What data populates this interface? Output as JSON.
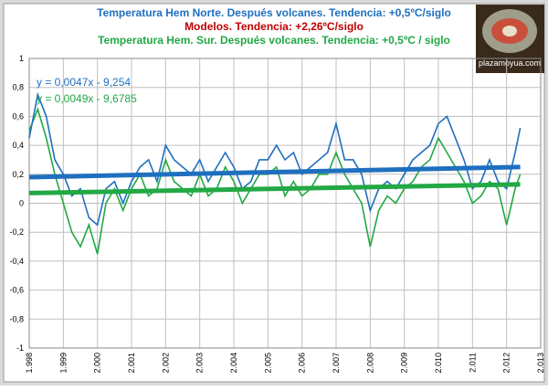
{
  "chart_data": {
    "type": "line",
    "title_lines": [
      {
        "text": "Temperatura Hem Norte. Después volcanes. Tendencia: +0,5ºC/siglo",
        "color": "#1f6fbf"
      },
      {
        "text": "Modelos. Tendencia: +2,26ºC/siglo",
        "color": "#c00000"
      },
      {
        "text": "Temperatura Hem. Sur. Después volcanes. Tendencia:  +0,5ºC / siglo",
        "color": "#22a844"
      }
    ],
    "logo": "plazamoyua.com",
    "x": [
      1998,
      1998.25,
      1998.5,
      1998.75,
      1999,
      1999.25,
      1999.5,
      1999.75,
      2000,
      2000.25,
      2000.5,
      2000.75,
      2001,
      2001.25,
      2001.5,
      2001.75,
      2002,
      2002.25,
      2002.5,
      2002.75,
      2003,
      2003.25,
      2003.5,
      2003.75,
      2004,
      2004.25,
      2004.5,
      2004.75,
      2005,
      2005.25,
      2005.5,
      2005.75,
      2006,
      2006.25,
      2006.5,
      2006.75,
      2007,
      2007.25,
      2007.5,
      2007.75,
      2008,
      2008.25,
      2008.5,
      2008.75,
      2009,
      2009.25,
      2009.5,
      2009.75,
      2010,
      2010.25,
      2010.5,
      2010.75,
      2011,
      2011.25,
      2011.5,
      2011.75,
      2012,
      2012.25,
      2012.4
    ],
    "series": [
      {
        "color": "#1f6fbf",
        "values": [
          0.45,
          0.75,
          0.6,
          0.3,
          0.2,
          0.05,
          0.1,
          -0.1,
          -0.15,
          0.1,
          0.15,
          0.0,
          0.15,
          0.25,
          0.3,
          0.15,
          0.4,
          0.3,
          0.25,
          0.2,
          0.3,
          0.15,
          0.25,
          0.35,
          0.25,
          0.1,
          0.15,
          0.3,
          0.3,
          0.4,
          0.3,
          0.35,
          0.2,
          0.25,
          0.3,
          0.35,
          0.55,
          0.3,
          0.3,
          0.2,
          -0.05,
          0.1,
          0.15,
          0.1,
          0.2,
          0.3,
          0.35,
          0.4,
          0.55,
          0.6,
          0.45,
          0.3,
          0.1,
          0.15,
          0.3,
          0.15,
          0.1,
          0.35,
          0.52
        ]
      },
      {
        "color": "#22a844",
        "values": [
          0.5,
          0.65,
          0.45,
          0.2,
          0.0,
          -0.2,
          -0.3,
          -0.15,
          -0.35,
          0.0,
          0.1,
          -0.05,
          0.1,
          0.2,
          0.05,
          0.1,
          0.3,
          0.15,
          0.1,
          0.05,
          0.2,
          0.05,
          0.1,
          0.25,
          0.15,
          0.0,
          0.1,
          0.2,
          0.2,
          0.25,
          0.05,
          0.15,
          0.05,
          0.1,
          0.2,
          0.2,
          0.35,
          0.2,
          0.1,
          0.0,
          -0.3,
          -0.05,
          0.05,
          0.0,
          0.1,
          0.15,
          0.25,
          0.3,
          0.45,
          0.35,
          0.25,
          0.15,
          0.0,
          0.05,
          0.15,
          0.1,
          -0.15,
          0.1,
          0.2
        ]
      }
    ],
    "trendlines": [
      {
        "label": "y = 0,0047x - 9,254",
        "color": "#1f6fbf",
        "x": [
          1998,
          2012.4
        ],
        "values": [
          0.18,
          0.25
        ]
      },
      {
        "label": "y = 0,0049x - 9,6785",
        "color": "#22a844",
        "x": [
          1998,
          2012.4
        ],
        "values": [
          0.07,
          0.13
        ]
      }
    ],
    "xlim": [
      1998,
      2013
    ],
    "xticks": [
      {
        "value": 1998,
        "label": "1.998"
      },
      {
        "value": 1999,
        "label": "1.999"
      },
      {
        "value": 2000,
        "label": "2.000"
      },
      {
        "value": 2001,
        "label": "2.001"
      },
      {
        "value": 2002,
        "label": "2.002"
      },
      {
        "value": 2003,
        "label": "2.003"
      },
      {
        "value": 2004,
        "label": "2.004"
      },
      {
        "value": 2005,
        "label": "2.005"
      },
      {
        "value": 2006,
        "label": "2.006"
      },
      {
        "value": 2007,
        "label": "2.007"
      },
      {
        "value": 2008,
        "label": "2.008"
      },
      {
        "value": 2009,
        "label": "2.009"
      },
      {
        "value": 2010,
        "label": "2.010"
      },
      {
        "value": 2011,
        "label": "2.011"
      },
      {
        "value": 2012,
        "label": "2.012"
      },
      {
        "value": 2013,
        "label": "2.013"
      }
    ],
    "ylim": [
      -1,
      1
    ],
    "yticks": [
      -1,
      {
        "value": -0.8,
        "label": "-0,8"
      },
      {
        "value": -0.6,
        "label": "-0,6"
      },
      {
        "value": -0.4,
        "label": "-0,4"
      },
      {
        "value": -0.2,
        "label": "-0,2"
      },
      0,
      {
        "value": 0.2,
        "label": "0,2"
      },
      {
        "value": 0.4,
        "label": "0,4"
      },
      {
        "value": 0.6,
        "label": "0,6"
      },
      {
        "value": 0.8,
        "label": "0,8"
      },
      1
    ],
    "grid": true
  }
}
